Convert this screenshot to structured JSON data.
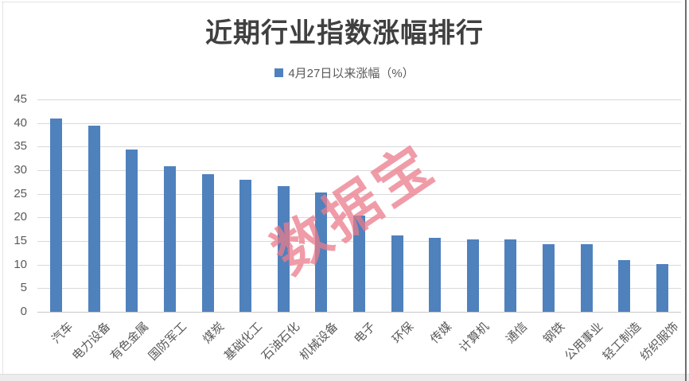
{
  "header": {
    "title": "近期行业指数涨幅排行"
  },
  "legend": {
    "label": "4月27日以来涨幅（%）",
    "swatch_color": "#4F81BD"
  },
  "watermark": {
    "text": "数据宝",
    "color": "#EB7C8B"
  },
  "chart_data": {
    "type": "bar",
    "title": "近期行业指数涨幅排行",
    "legend_entries": [
      "4月27日以来涨幅（%）"
    ],
    "legend_position": "top",
    "categories": [
      "汽车",
      "电力设备",
      "有色金属",
      "国防军工",
      "煤炭",
      "基础化工",
      "石油石化",
      "机械设备",
      "电子",
      "环保",
      "传媒",
      "计算机",
      "通信",
      "钢铁",
      "公用事业",
      "轻工制造",
      "纺织服饰"
    ],
    "values": [
      40.9,
      39.5,
      34.4,
      30.8,
      29.1,
      27.9,
      26.7,
      25.2,
      20.4,
      16.2,
      15.6,
      15.4,
      15.3,
      14.4,
      14.4,
      10.9,
      10.1
    ],
    "xlabel": "",
    "ylabel": "",
    "ylim": [
      0,
      45
    ],
    "yticks": [
      0,
      5,
      10,
      15,
      20,
      25,
      30,
      35,
      40,
      45
    ],
    "grid": true,
    "bar_color": "#4F81BD",
    "grid_color": "#D9D9D9",
    "axis_text_color": "#595959",
    "title_color": "#404040"
  }
}
